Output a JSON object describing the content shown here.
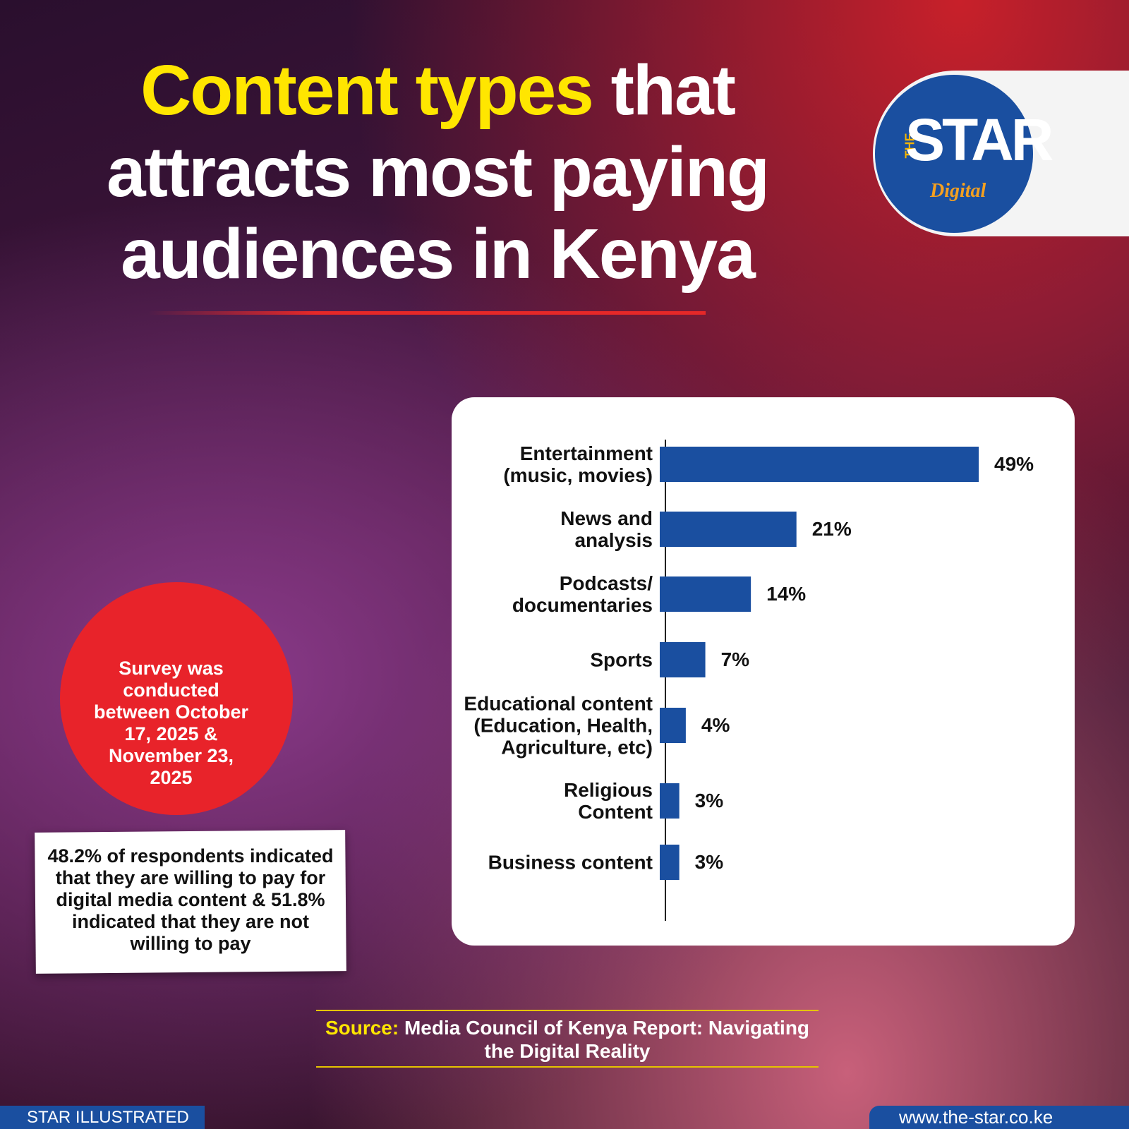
{
  "header": {
    "title_highlight": "Content types",
    "title_rest": " that\nattracts most paying\naudiences in Kenya"
  },
  "logo": {
    "the": "THE",
    "star": "STAR",
    "digital": "Digital"
  },
  "chart_data": {
    "type": "hbar",
    "categories": [
      "Entertainment\n(music, movies)",
      "News and\nanalysis",
      "Podcasts/\ndocumentaries",
      "Sports",
      "Educational content\n(Education, Health,\nAgriculture, etc)",
      "Religious\nContent",
      "Business content"
    ],
    "values": [
      49,
      21,
      14,
      7,
      4,
      3,
      3
    ],
    "value_labels": [
      "49%",
      "21%",
      "14%",
      "7%",
      "4%",
      "3%",
      "3%"
    ],
    "color": "#1a4fa0"
  },
  "sticker": {
    "text": "Survey was\nconducted\nbetween October\n17, 2025 &\nNovember 23,\n2025"
  },
  "note": {
    "text": "48.2% of respondents indicated\nthat they are willing to pay for\ndigital media content & 51.8%\nindicated that they are not\nwilling to pay"
  },
  "source": {
    "label": "Source:",
    "text": " Media Council of Kenya Report: Navigating\nthe Digital Reality"
  },
  "footer": {
    "left": "STAR ILLUSTRATED",
    "right": "www.the-star.co.ke"
  }
}
